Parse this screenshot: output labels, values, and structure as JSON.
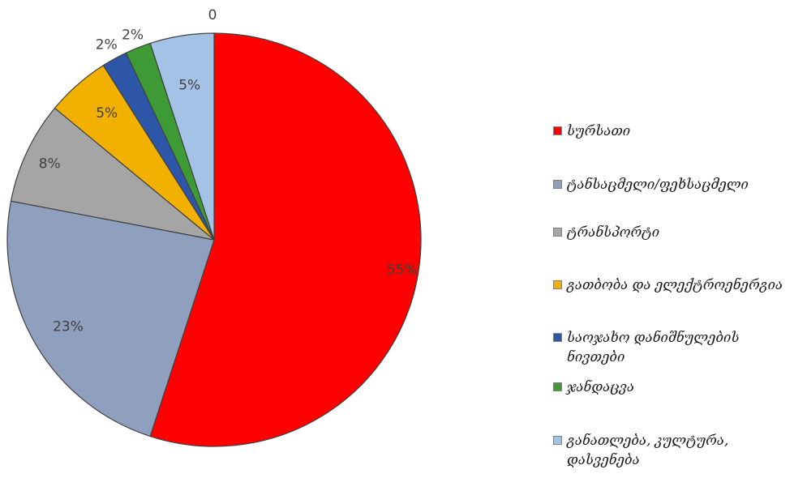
{
  "chart_data": {
    "type": "pie",
    "slices": [
      {
        "label": "სურსათი",
        "value": 55,
        "value_label": "55%",
        "color": "#FF0000"
      },
      {
        "label": "ტანსაცმელი/ფეხსაცმელი",
        "value": 23,
        "value_label": "23%",
        "color": "#8EA0BE"
      },
      {
        "label": "ტრანსპორტი",
        "value": 8,
        "value_label": "8%",
        "color": "#A5A5A5"
      },
      {
        "label": "გათბობა და ელექტროენერგია",
        "value": 5,
        "value_label": "5%",
        "color": "#F2B100"
      },
      {
        "label": "საოჯახო დანიშნულების ნივთები",
        "value": 2,
        "value_label": "2%",
        "color": "#2E56A8"
      },
      {
        "label": "ჯანდაცვა",
        "value": 2,
        "value_label": "2%",
        "color": "#3E9A35"
      },
      {
        "label": "განათლება, კულტურა, დასვენება",
        "value": 5,
        "value_label": "5%",
        "color": "#A4C2E6"
      }
    ],
    "extra_label": "0",
    "legend_position": "right",
    "edge_color": "#404040"
  }
}
